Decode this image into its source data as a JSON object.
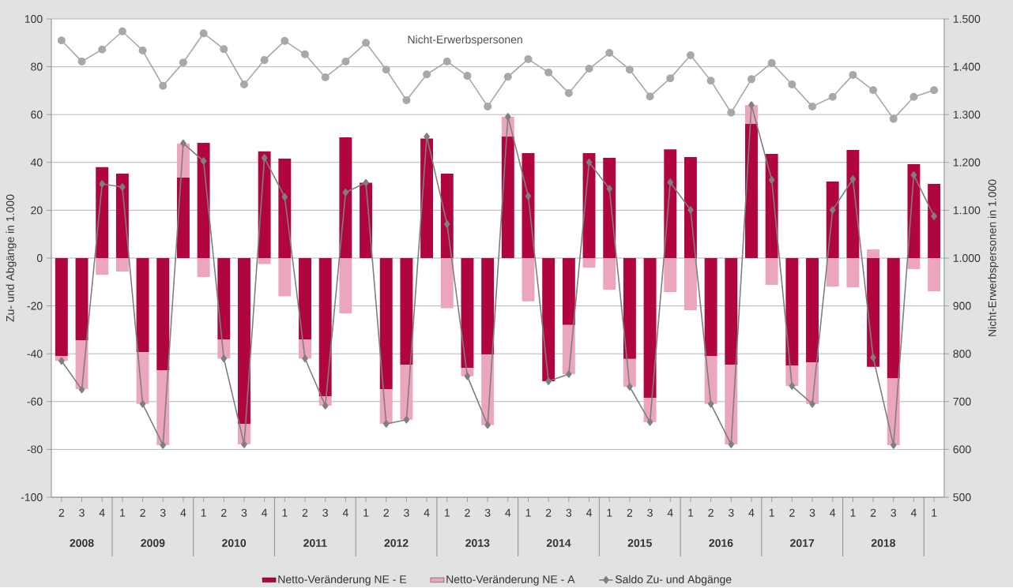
{
  "chart_data": {
    "type": "bar",
    "stacked": true,
    "ylabel": "Zu- und Abgänge in 1.000",
    "y2label": "Nicht-Erwerbspersonen in 1.000",
    "categories": [
      "2",
      "3",
      "4",
      "1",
      "2",
      "3",
      "4",
      "1",
      "2",
      "3",
      "4",
      "1",
      "2",
      "3",
      "4",
      "1",
      "2",
      "3",
      "4",
      "1",
      "2",
      "3",
      "4",
      "1",
      "2",
      "3",
      "4",
      "1",
      "2",
      "3",
      "4",
      "1",
      "2",
      "3",
      "4",
      "1",
      "2",
      "3",
      "4",
      "1",
      "2",
      "3",
      "4",
      "1"
    ],
    "annotations": [
      "2008",
      "2009",
      "2010",
      "2011",
      "2012",
      "2013",
      "2014",
      "2015",
      "2016",
      "2017",
      "2018"
    ],
    "ylim": [
      -100,
      100
    ],
    "yticks": [
      -100,
      -80,
      -60,
      -40,
      -20,
      0,
      20,
      40,
      60,
      80,
      100
    ],
    "y2lim": [
      500,
      1500
    ],
    "y2ticks": [
      500,
      600,
      700,
      800,
      900,
      {
        "value": 1000,
        "label": "1.000"
      },
      {
        "value": 1100,
        "label": "1.100"
      },
      {
        "value": 1200,
        "label": "1.200"
      },
      {
        "value": 1300,
        "label": "1.300"
      },
      {
        "value": 1400,
        "label": "1.400"
      },
      {
        "value": 1500,
        "label": "1.500"
      }
    ],
    "grid": "y",
    "legend": "bottom",
    "series": [
      {
        "name": "Netto-Veränderung NE - E",
        "color": "#b0053f",
        "values": [
          -41,
          -34.3,
          38,
          35.3,
          -39.3,
          -46.9,
          33.7,
          48.2,
          -34,
          -69.3,
          44.6,
          41.6,
          -34,
          -57.8,
          50.5,
          31.5,
          -54.8,
          -44.6,
          50,
          35.3,
          -45.9,
          -40.3,
          50.8,
          43.9,
          -51.5,
          -28,
          43.9,
          41.9,
          -42.2,
          -58.4,
          45.5,
          42.2,
          -41,
          -44.6,
          56.1,
          43.6,
          -44.9,
          -43.6,
          32,
          45.2,
          -45.5,
          -50.2,
          39.3,
          31
        ]
      },
      {
        "name": "Netto-Veränderung NE - A",
        "color": "#eca6bb",
        "values": [
          -2,
          -20.5,
          -7,
          -5.6,
          -21.7,
          -31.3,
          14.2,
          -7.9,
          -8,
          -8.6,
          -2.5,
          -16,
          -8,
          -3.9,
          -23.1,
          0,
          -14.5,
          -23,
          null,
          -21,
          -3.5,
          -29.5,
          8.3,
          -18.1,
          0,
          -20.5,
          -4,
          -13.2,
          -11.6,
          -10.2,
          -14.2,
          -21.8,
          -20,
          -33.3,
          7.9,
          -11.2,
          -8.6,
          -17.4,
          -11.9,
          -12.2,
          3.6,
          -28,
          -4.6,
          -13.9
        ]
      },
      {
        "name": "Saldo Zu- und Abgänge",
        "type": "line",
        "marker": "diamond",
        "color": "#7f7f7f",
        "values": [
          -43,
          -55,
          31,
          29.7,
          -61,
          -78.2,
          48,
          40.6,
          -42,
          -77.9,
          41.9,
          25.6,
          -42,
          -61.7,
          27.5,
          31.5,
          -69.3,
          -67.6,
          50.8,
          14.2,
          -49.4,
          -69.8,
          59.1,
          25.9,
          -51.5,
          -48.5,
          40,
          29,
          -53.8,
          -68.6,
          31.7,
          20.1,
          -61,
          -77.9,
          64,
          32.7,
          -53.5,
          -61,
          20.1,
          33,
          -41.6,
          -78.2,
          34.7,
          17.5
        ]
      },
      {
        "name": "Nicht-Erwerbspersonen",
        "type": "line",
        "axis": "y2",
        "marker": "circle",
        "color": "#a7a8aa",
        "values": [
          1455,
          1411,
          1436,
          1474,
          1434,
          1360,
          1409,
          1470,
          1437,
          1363,
          1414,
          1454,
          1426,
          1378,
          1411,
          1450,
          1394,
          1330,
          1384,
          1411,
          1381,
          1317,
          1379,
          1416,
          1388,
          1345,
          1396,
          1429,
          1394,
          1338,
          1376,
          1424,
          1371,
          1304,
          1374,
          1408,
          1363,
          1317,
          1337,
          1383,
          1351,
          1291,
          1337,
          1351
        ]
      }
    ]
  }
}
